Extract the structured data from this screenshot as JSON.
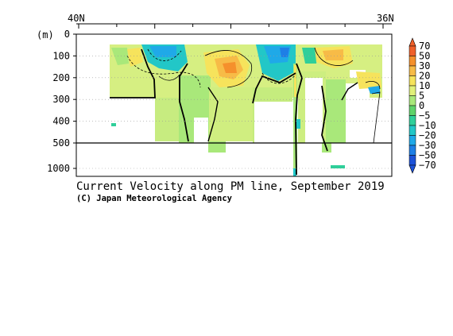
{
  "chart_data": {
    "type": "heatmap",
    "title": "Current Velocity along PM line, September 2019",
    "credit": "(C) Japan Meteorological Agency",
    "x_axis": {
      "labels": [
        "40N",
        "36N"
      ],
      "range": [
        40,
        36
      ]
    },
    "y_axis": {
      "unit_label": "(m)",
      "upper_ticks": [
        0,
        100,
        200,
        300,
        400,
        500
      ],
      "lower_ticks": [
        1000
      ],
      "grid": true
    },
    "colorbar": {
      "levels": [
        "70",
        "50",
        "30",
        "20",
        "10",
        "5",
        "0",
        "−5",
        "−10",
        "−20",
        "−30",
        "−50",
        "−70"
      ],
      "colors": [
        "#f0602a",
        "#f5902c",
        "#f7bb47",
        "#f6e35c",
        "#e1f07a",
        "#a9e87a",
        "#5fd36a",
        "#2fcf9a",
        "#22c7c7",
        "#1fa9e8",
        "#1e7fe6",
        "#1c52d8"
      ]
    }
  }
}
